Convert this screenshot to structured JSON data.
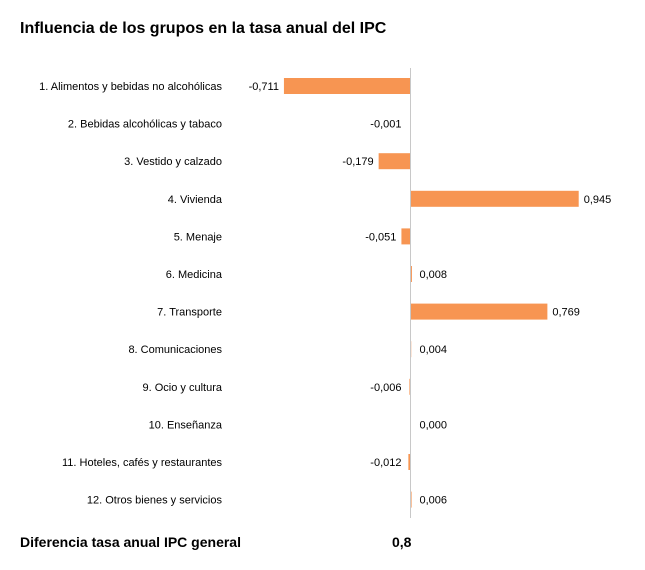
{
  "chart_data": {
    "type": "bar",
    "orientation": "horizontal",
    "title": "Influencia de los grupos en la tasa anual del IPC",
    "categories": [
      "1. Alimentos y bebidas no alcohólicas",
      "2. Bebidas alcohólicas y tabaco",
      "3. Vestido y calzado",
      "4. Vivienda",
      "5. Menaje",
      "6. Medicina",
      "7. Transporte",
      "8. Comunicaciones",
      "9. Ocio y cultura",
      "10. Enseñanza",
      "11. Hoteles, cafés y restaurantes",
      "12. Otros bienes y servicios"
    ],
    "values": [
      -0.711,
      -0.001,
      -0.179,
      0.945,
      -0.051,
      0.008,
      0.769,
      0.004,
      -0.006,
      0.0,
      -0.012,
      0.006
    ],
    "value_labels": [
      "-0,711",
      "-0,001",
      "-0,179",
      "0,945",
      "-0,051",
      "0,008",
      "0,769",
      "0,004",
      "-0,006",
      "0,000",
      "-0,012",
      "0,006"
    ],
    "bar_color": "#f79552",
    "axis_color": "#c8c8c8",
    "grid": false,
    "legend": "none"
  },
  "summary": {
    "label": "Diferencia tasa anual IPC general",
    "value": "0,8"
  }
}
